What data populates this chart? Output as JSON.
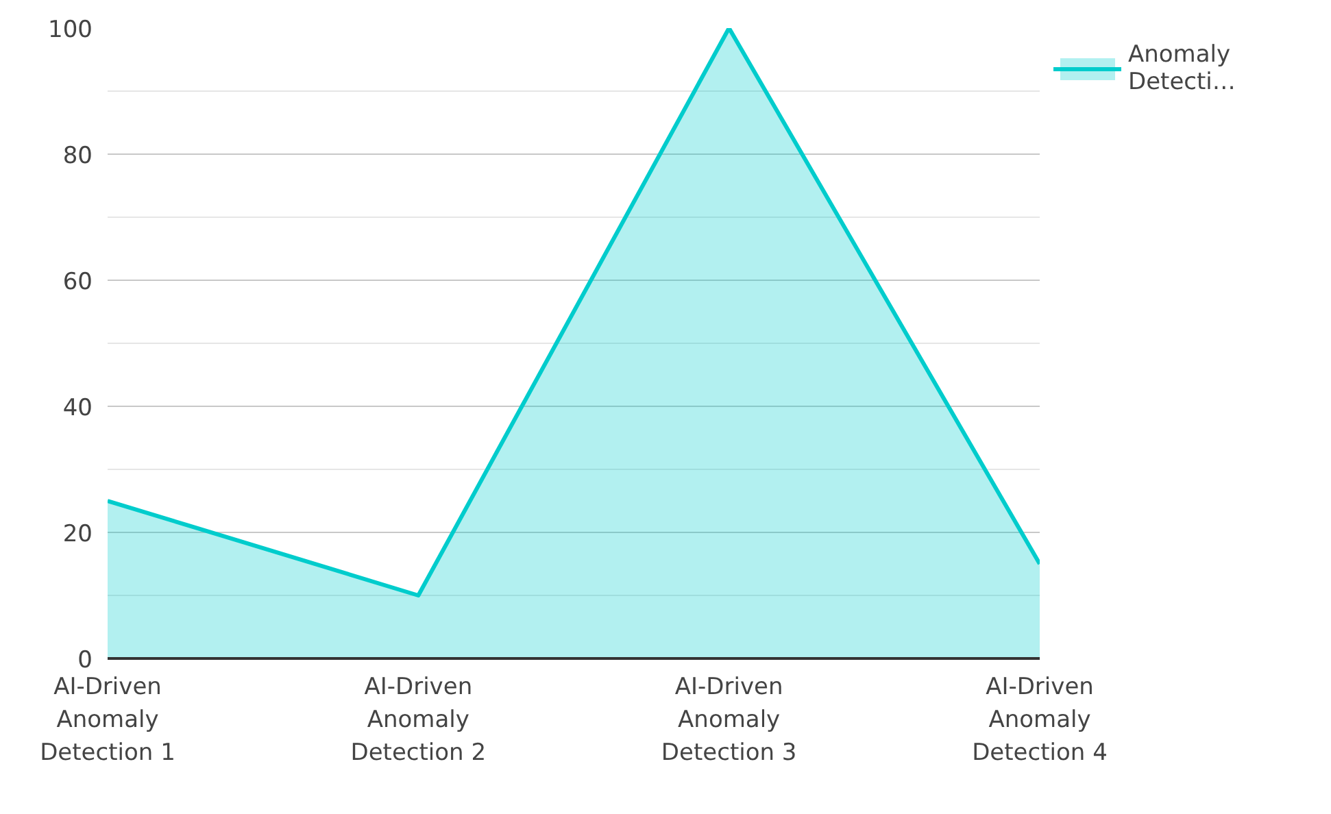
{
  "chart_data": {
    "type": "area",
    "categories": [
      "AI-Driven Anomaly Detection 1",
      "AI-Driven Anomaly Detection 2",
      "AI-Driven Anomaly Detection 3",
      "AI-Driven Anomaly Detection 4"
    ],
    "series": [
      {
        "name": "Anomaly Detecti…",
        "color": "#00cccc",
        "values": [
          25,
          10,
          100,
          15
        ]
      }
    ],
    "ylim": [
      0,
      100
    ],
    "yticks": [
      0,
      20,
      40,
      60,
      80,
      100
    ],
    "grid": "y",
    "legend": "top right"
  }
}
